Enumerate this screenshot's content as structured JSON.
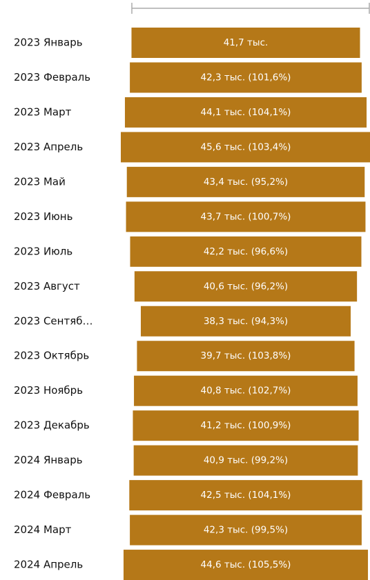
{
  "chart_data": {
    "type": "funnel",
    "color": "#b57818",
    "categories": [
      "2023 Январь",
      "2023 Февраль",
      "2023 Март",
      "2023 Апрель",
      "2023 Май",
      "2023 Июнь",
      "2023 Июль",
      "2023 Август",
      "2023 Сентяб…",
      "2023 Октябрь",
      "2023 Ноябрь",
      "2023 Декабрь",
      "2024 Январь",
      "2024 Февраль",
      "2024 Март",
      "2024 Апрель"
    ],
    "values": [
      41.7,
      42.3,
      44.1,
      45.6,
      43.4,
      43.7,
      42.2,
      40.6,
      38.3,
      39.7,
      40.8,
      41.2,
      40.9,
      42.5,
      42.3,
      44.6
    ],
    "value_labels": [
      "41,7 тыс.",
      "42,3 тыс. (101,6%)",
      "44,1 тыс. (104,1%)",
      "45,6 тыс. (103,4%)",
      "43,4 тыс. (95,2%)",
      "43,7 тыс. (100,7%)",
      "42,2 тыс. (96,6%)",
      "40,6 тыс. (96,2%)",
      "38,3 тыс. (94,3%)",
      "39,7 тыс. (103,8%)",
      "40,8 тыс. (102,7%)",
      "41,2 тыс. (100,9%)",
      "40,9 тыс. (99,2%)",
      "42,5 тыс. (104,1%)",
      "42,3 тыс. (99,5%)",
      "44,6 тыс. (105,5%)"
    ]
  }
}
